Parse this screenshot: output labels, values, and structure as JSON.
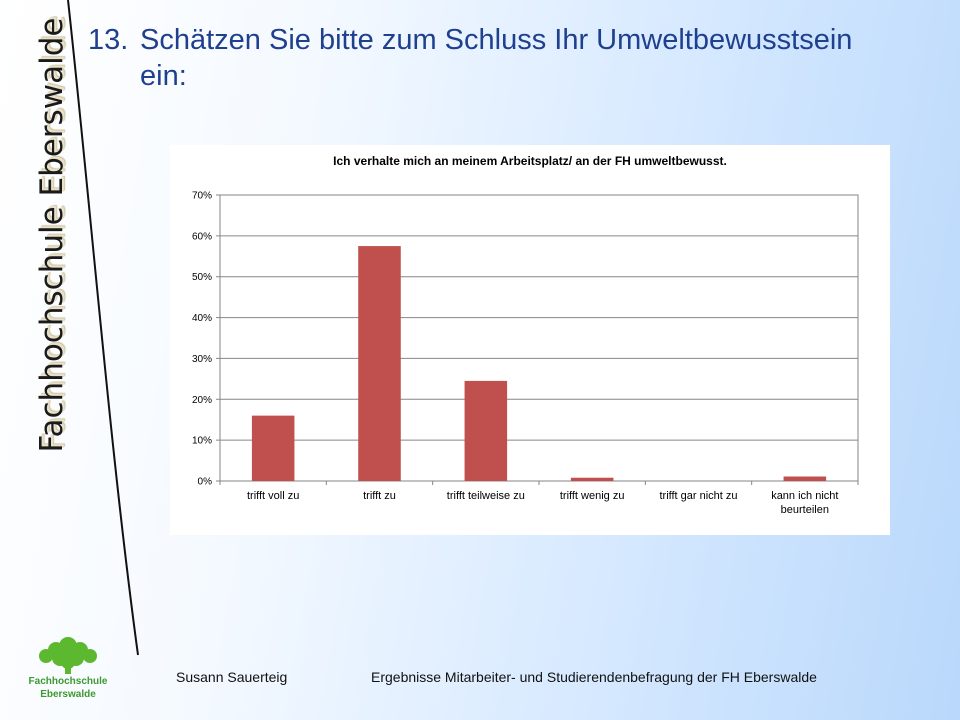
{
  "slide": {
    "brand_vertical": "Fachhochschule Eberswalde",
    "title_number": "13.",
    "title_line1": "Schätzen Sie bitte zum Schluss Ihr Umweltbewusstsein",
    "title_line2": "ein:",
    "footer_author": "Susann Sauerteig",
    "footer_title": "Ergebnisse Mitarbeiter- und Studierendenbefragung der FH Eberswalde",
    "logo_line1": "Fachhochschule",
    "logo_line2": "Eberswalde",
    "logo_color": "#5cb82e"
  },
  "chart_data": {
    "type": "bar",
    "title": "Ich verhalte mich an meinem Arbeitsplatz/ an der FH umweltbewusst.",
    "categories": [
      "trifft voll zu",
      "trifft zu",
      "trifft teilweise zu",
      "trifft wenig zu",
      "trifft gar nicht zu",
      "kann ich nicht beurteilen"
    ],
    "values": [
      16,
      57.5,
      24.5,
      0.8,
      0,
      1.1
    ],
    "ylim": [
      0,
      70
    ],
    "yticks": [
      "0%",
      "10%",
      "20%",
      "30%",
      "40%",
      "50%",
      "60%",
      "70%"
    ],
    "ytick_values": [
      0,
      10,
      20,
      30,
      40,
      50,
      60,
      70
    ],
    "grid": true,
    "legend": "none",
    "bar_color": "#c0504d"
  }
}
